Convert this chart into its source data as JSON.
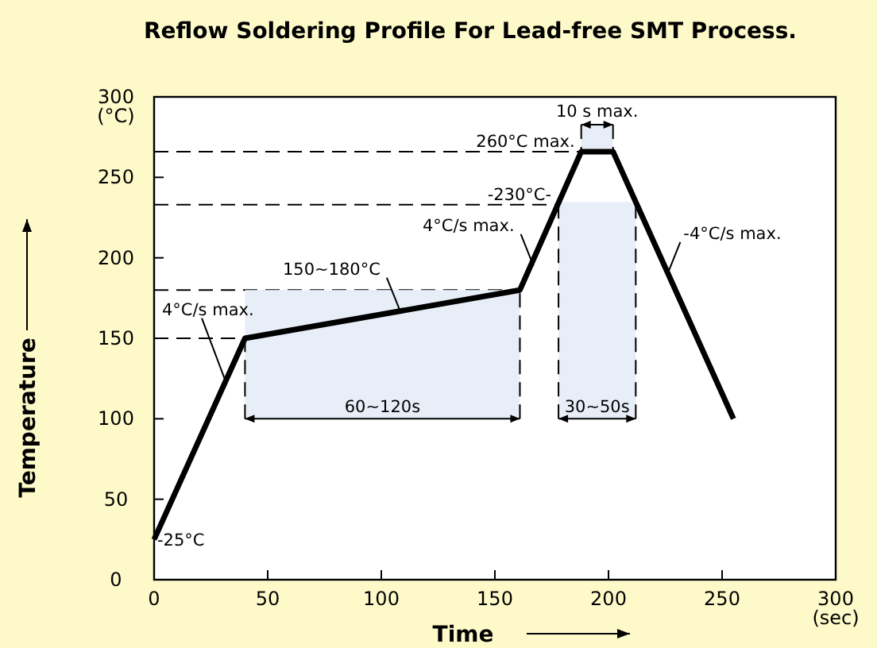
{
  "chart_data": {
    "type": "line",
    "title": "Reflow Soldering Profile For Lead-free SMT Process.",
    "xlabel": "Time",
    "ylabel": "Temperature",
    "x": [
      0,
      40,
      161,
      188,
      202,
      255
    ],
    "series": [
      {
        "color": "#000000",
        "values": [
          25,
          150,
          180,
          266,
          266,
          100
        ]
      }
    ],
    "xlim": [
      0,
      300
    ],
    "xticks": [
      0,
      50,
      100,
      150,
      200,
      250,
      {
        "value": 300,
        "label": "300\n(sec)"
      }
    ],
    "ylim": [
      0,
      300
    ],
    "yticks": [
      0,
      50,
      100,
      150,
      200,
      250,
      {
        "value": 300,
        "label": "300\n(°C)"
      }
    ],
    "ref_lines": [
      {
        "axis": "y",
        "value": 150,
        "line_style": "dashed"
      },
      {
        "axis": "y",
        "value": 180,
        "line_style": "dashed"
      },
      {
        "axis": "y",
        "value": 233,
        "label": "-230°C-",
        "line_style": "dashed"
      },
      {
        "axis": "y",
        "value": 266,
        "label": "260°C max.",
        "line_style": "dashed"
      }
    ],
    "bands": [
      {
        "axis": "x",
        "from": 40,
        "to": 161,
        "label": "60~120s",
        "color": "#e8eef8"
      },
      {
        "axis": "x",
        "from": 178,
        "to": 212,
        "label": "30~50s",
        "color": "#e8eef8"
      },
      {
        "axis": "x",
        "from": 188,
        "to": 202,
        "label": "10 s max.",
        "color": "#e8eef8"
      }
    ],
    "annotations": [
      {
        "text": "-25°C",
        "x": 0,
        "y": 25
      },
      {
        "text": "4°C/s max.",
        "x": 31,
        "y": 125
      },
      {
        "text": "150~180°C",
        "x": 108,
        "y": 168
      },
      {
        "text": "4°C/s max.",
        "x": 167,
        "y": 195
      },
      {
        "text": "-4°C/s max.",
        "x": 226,
        "y": 190
      }
    ],
    "grid": false,
    "marker": "none",
    "line_style": "solid"
  }
}
